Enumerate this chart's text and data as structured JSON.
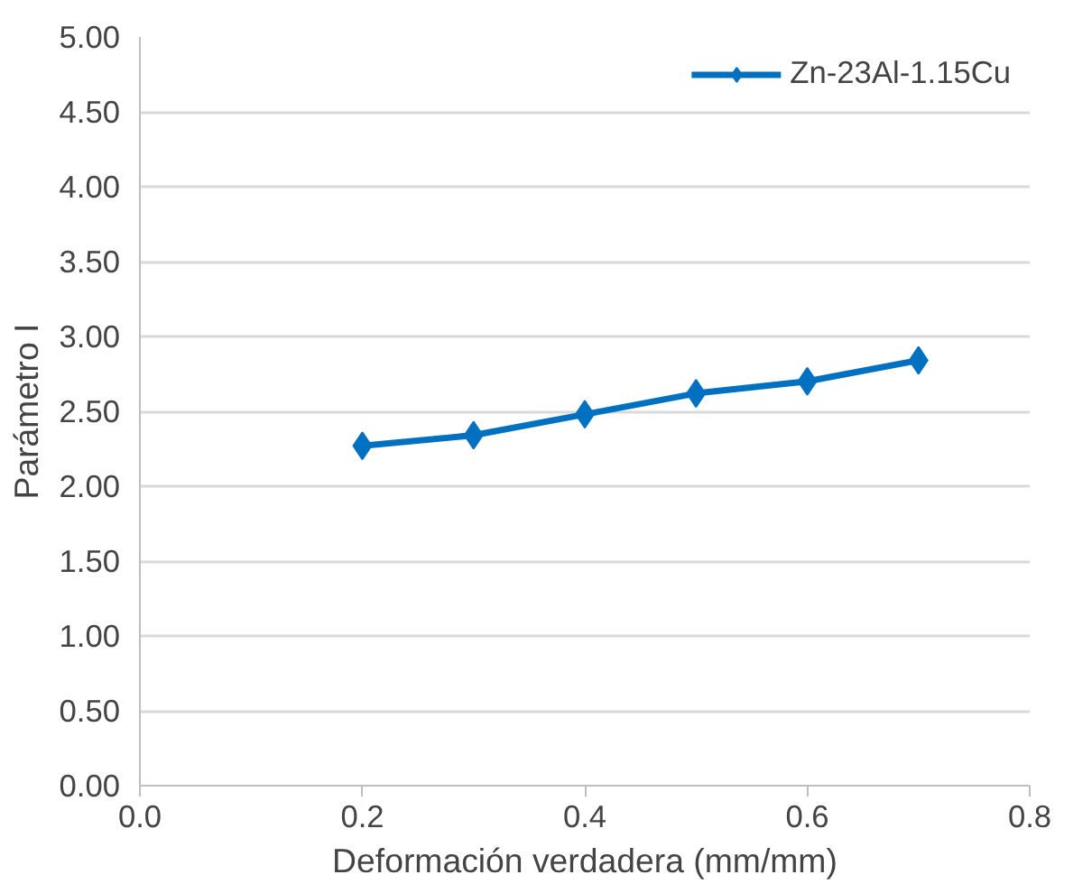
{
  "chart_data": {
    "type": "line",
    "xlabel": "Deformación verdadera (mm/mm)",
    "ylabel": "Parámetro I",
    "x": [
      0.2,
      0.3,
      0.4,
      0.5,
      0.6,
      0.7
    ],
    "series": [
      {
        "name": "Zn-23Al-1.15Cu",
        "color": "#0070c0",
        "values": [
          2.27,
          2.34,
          2.48,
          2.62,
          2.7,
          2.84
        ]
      }
    ],
    "xlim": [
      0,
      0.8
    ],
    "xticks": [
      {
        "value": 0,
        "label": "0.0"
      },
      {
        "value": 0.2,
        "label": "0.2"
      },
      {
        "value": 0.4,
        "label": "0.4"
      },
      {
        "value": 0.6,
        "label": "0.6"
      },
      {
        "value": 0.8,
        "label": "0.8"
      }
    ],
    "ylim": [
      0,
      5
    ],
    "yticks": [
      {
        "value": 0,
        "label": "0.00"
      },
      {
        "value": 0.5,
        "label": "0.50"
      },
      {
        "value": 1,
        "label": "1.00"
      },
      {
        "value": 1.5,
        "label": "1.50"
      },
      {
        "value": 2,
        "label": "2.00"
      },
      {
        "value": 2.5,
        "label": "2.50"
      },
      {
        "value": 3,
        "label": "3.00"
      },
      {
        "value": 3.5,
        "label": "3.50"
      },
      {
        "value": 4,
        "label": "4.00"
      },
      {
        "value": 4.5,
        "label": "4.50"
      },
      {
        "value": 5,
        "label": "5.00"
      }
    ],
    "grid": "y",
    "legend": "top right",
    "marker": "diamond",
    "line_style": "solid"
  }
}
